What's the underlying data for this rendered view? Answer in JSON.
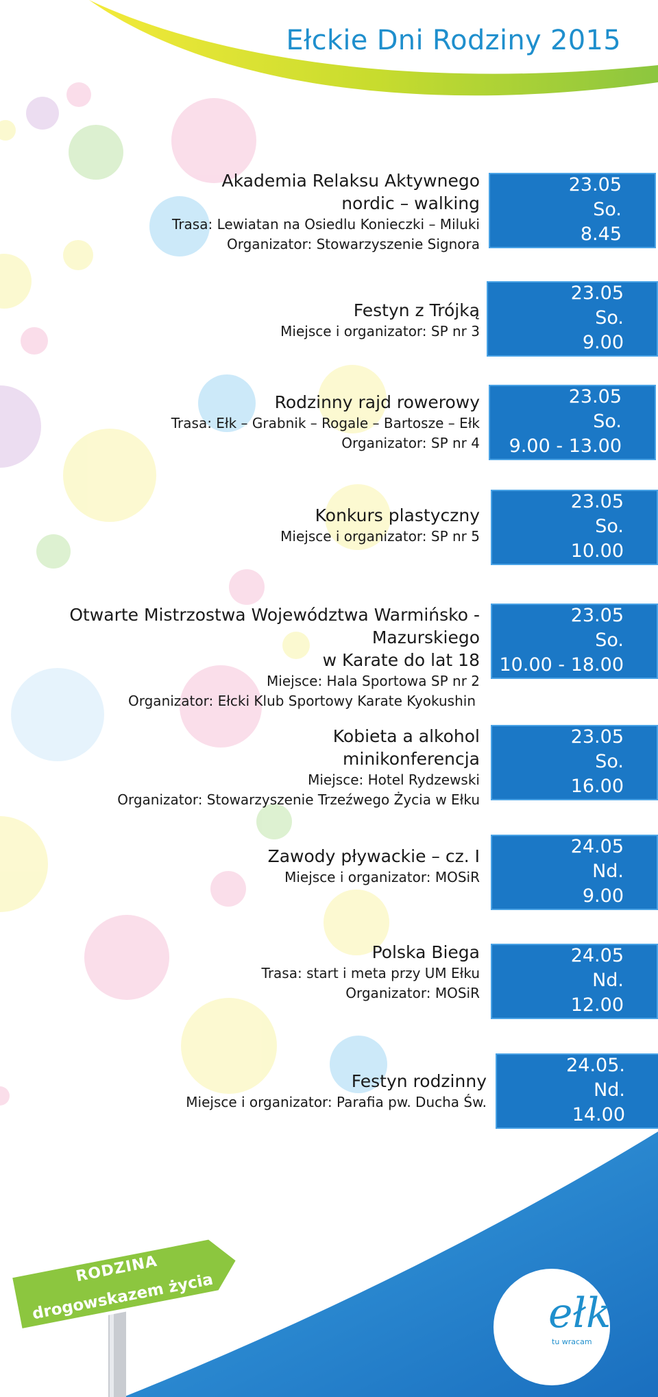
{
  "title": "Ełckie Dni Rodziny 2015",
  "events": [
    {
      "name": [
        "Akademia Relaksu Aktywnego",
        "nordic – walking"
      ],
      "info": [
        "Trasa: Lewiatan na Osiedlu  Konieczki – Miluki",
        "Organizator: Stowarzyszenie Signora"
      ],
      "date": "23.05",
      "day": "So.",
      "time": "8.45"
    },
    {
      "name": [
        "Festyn z Trójką"
      ],
      "info": [
        "Miejsce i organizator: SP nr 3"
      ],
      "date": "23.05",
      "day": "So.",
      "time": "9.00"
    },
    {
      "name": [
        "Rodzinny rajd rowerowy"
      ],
      "info": [
        "Trasa: Ełk – Grabnik – Rogale – Bartosze – Ełk",
        "Organizator: SP nr 4"
      ],
      "date": "23.05",
      "day": "So.",
      "time": "9.00 - 13.00"
    },
    {
      "name": [
        "Konkurs plastyczny"
      ],
      "info": [
        "Miejsce i organizator: SP nr 5"
      ],
      "date": "23.05",
      "day": "So.",
      "time": "10.00"
    },
    {
      "name": [
        "Otwarte Mistrzostwa Województwa Warmińsko - Mazurskiego",
        "w Karate do lat 18"
      ],
      "info": [
        "Miejsce:  Hala Sportowa SP nr 2",
        "Organizator: Ełcki Klub Sportowy Karate Kyokushin"
      ],
      "date": "23.05",
      "day": "So.",
      "time": "10.00 - 18.00"
    },
    {
      "name": [
        "Kobieta a alkohol",
        "minikonferencja"
      ],
      "info": [
        "Miejsce: Hotel Rydzewski",
        "Organizator: Stowarzyszenie Trzeźwego Życia w Ełku"
      ],
      "date": "23.05",
      "day": "So.",
      "time": "16.00"
    },
    {
      "name": [
        "Zawody pływackie – cz. I"
      ],
      "info": [
        "Miejsce i organizator: MOSiR"
      ],
      "date": "24.05",
      "day": "Nd.",
      "time": "9.00"
    },
    {
      "name": [
        "Polska Biega"
      ],
      "info": [
        "Trasa: start i meta przy UM Ełku",
        "Organizator: MOSiR"
      ],
      "date": "24.05",
      "day": "Nd.",
      "time": "12.00"
    },
    {
      "name": [
        "Festyn rodzinny"
      ],
      "info": [
        "Miejsce i organizator: Parafia pw. Ducha Św."
      ],
      "date": "24.05.",
      "day": "Nd.",
      "time": "14.00"
    }
  ],
  "sign": {
    "line1": "RODZINA",
    "line2": "drogowskazem życia"
  },
  "logo": {
    "text": "ełk",
    "tagline": "tu wracam"
  },
  "colors": {
    "accent": "#1f8fcd",
    "box": "#1b78c6",
    "green": "#8cc63f"
  }
}
